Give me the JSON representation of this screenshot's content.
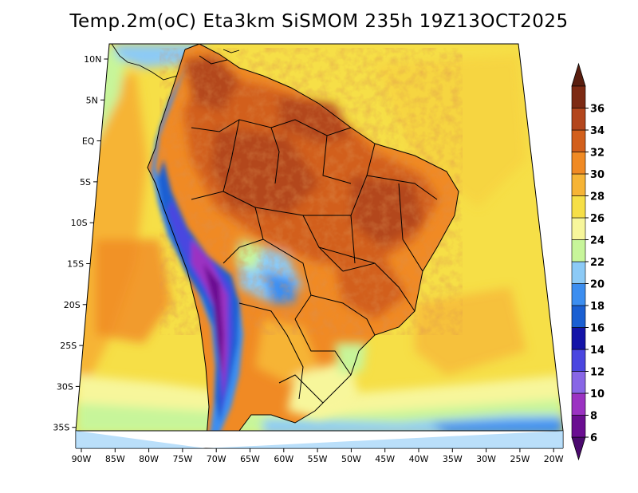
{
  "title": "Temp.2m(oC) Eta3km SiSMOM 235h 19Z13OCT2025",
  "lat_ticks": [
    "10N",
    "5N",
    "EQ",
    "5S",
    "10S",
    "15S",
    "20S",
    "25S",
    "30S",
    "35S"
  ],
  "lon_ticks": [
    "90W",
    "85W",
    "80W",
    "75W",
    "70W",
    "65W",
    "60W",
    "55W",
    "50W",
    "45W",
    "40W",
    "35W",
    "30W",
    "25W",
    "20W"
  ],
  "colorbar": {
    "labels": [
      "6",
      "8",
      "10",
      "12",
      "14",
      "16",
      "18",
      "20",
      "22",
      "24",
      "26",
      "28",
      "30",
      "32",
      "34",
      "36"
    ],
    "colors": [
      "#6a0d91",
      "#9b32c2",
      "#8866e6",
      "#4a46e0",
      "#1414a8",
      "#1a5fd2",
      "#3c8ef0",
      "#8ccaf6",
      "#c7f59a",
      "#f7f69b",
      "#f6df47",
      "#f6b436",
      "#f08a24",
      "#d25f1c",
      "#b3461d",
      "#7d2a13"
    ],
    "low_cap_color": "#4b0a6e",
    "high_cap_color": "#5a1e0f"
  },
  "colors": {
    "ocean_warm": "#f6df47",
    "ocean_hot": "#f6b436",
    "land_hot": "#d25f1c",
    "land_very_hot": "#b3461d",
    "andes_cold": "#1a5fd2",
    "south_cool": "#8ccaf6"
  }
}
